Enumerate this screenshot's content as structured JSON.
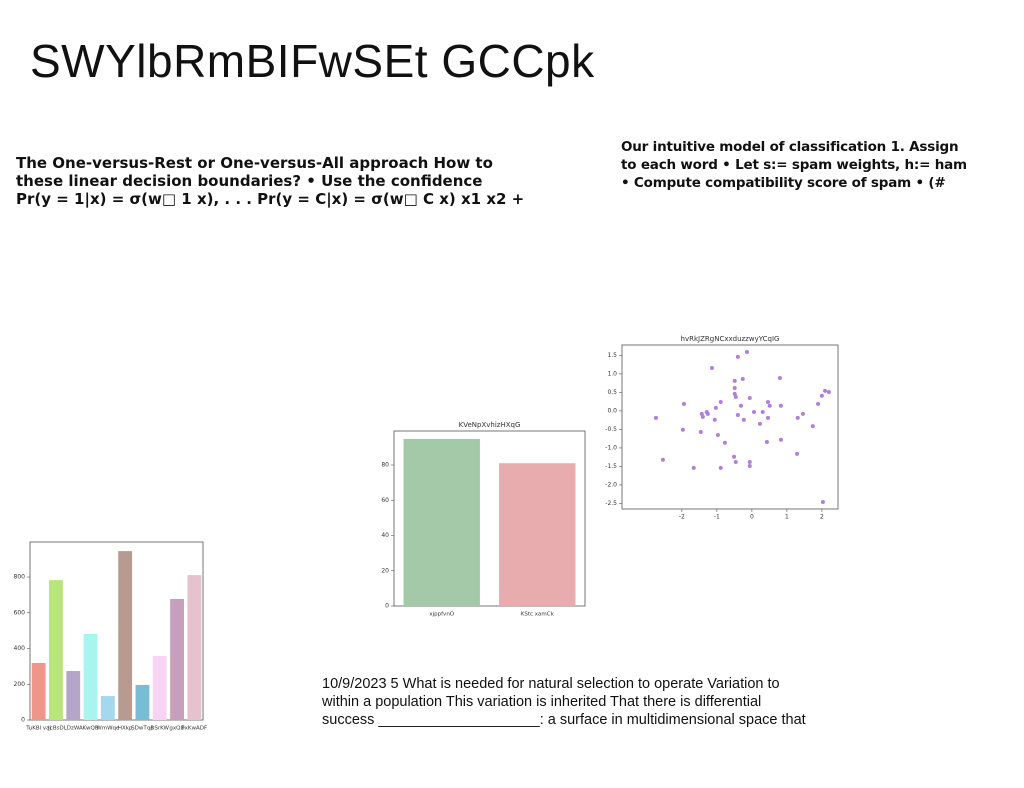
{
  "title": "SWYlbRmBIFwSEt GCCpk",
  "left_text": [
    "The One-versus-Rest or One-versus-All approach How to",
    "these linear decision boundaries? • Use the confidence",
    "Pr(y = 1|x) = σ(w□ 1 x), . . . Pr(y = C|x) = σ(w□ C x) x1 x2 +"
  ],
  "right_text": [
    "Our intuitive model of classification 1. Assign",
    "to each word • Let s:= spam weights, h:= ham",
    "• Compute compatibility score of spam • (#"
  ],
  "bottom_text": [
    "10/9/2023 5 What is needed for natural selection to operate Variation to",
    "within a population This variation is inherited That there is differential",
    "success ____________________: a surface in multidimensional space that"
  ],
  "chart_data": [
    {
      "type": "bar",
      "categories": [
        "TuKBl vaj",
        "JcBsD",
        "LDzWA",
        "KwQB",
        "WmWqe",
        "HXkp",
        "SDwTqp",
        "RSrKW",
        "gxQD",
        "FxKwADF"
      ],
      "values": [
        319,
        783,
        274,
        481,
        134,
        945,
        196,
        358,
        677,
        811
      ],
      "colors": [
        "#f0958a",
        "#b9e67a",
        "#b3a6c9",
        "#a8f5ef",
        "#a4d8ee",
        "#b79b90",
        "#79bcd6",
        "#f9d3f4",
        "#c59fbb",
        "#e6c2cf"
      ],
      "ylim": [
        0,
        996
      ],
      "yticks": [
        0,
        200,
        400,
        600,
        800
      ]
    },
    {
      "type": "bar",
      "title": "KVeNpXvhizHXqG",
      "categories": [
        "xjppfvnO",
        "KStc xamCk"
      ],
      "values": [
        94.8,
        81
      ],
      "colors": [
        "#a3c9a8",
        "#e8abae"
      ],
      "ylim": [
        0,
        99.3
      ],
      "yticks": [
        0,
        20,
        40,
        60,
        80
      ]
    },
    {
      "type": "scatter",
      "title": "hvRkJZRgNCxxduzzwyYCqIG",
      "color": "#b07fdc",
      "x": [
        -2.74,
        -2.54,
        -1.94,
        -1.97,
        -1.66,
        -1.46,
        -1.43,
        -1.4,
        -1.29,
        -1.26,
        -1.14,
        -1.06,
        -1.03,
        -0.97,
        -0.89,
        -0.89,
        -0.77,
        -0.51,
        -0.49,
        -0.49,
        -0.49,
        -0.46,
        -0.46,
        -0.4,
        -0.4,
        -0.31,
        -0.26,
        -0.23,
        -0.14,
        -0.06,
        -0.06,
        -0.06,
        0.06,
        0.23,
        0.31,
        0.43,
        0.46,
        0.46,
        0.51,
        0.8,
        0.83,
        0.83,
        1.29,
        1.31,
        1.46,
        1.74,
        1.89,
        2.0,
        2.03,
        2.09,
        2.2
      ],
      "values": [
        -0.19,
        -1.32,
        0.19,
        -0.51,
        -1.54,
        -0.57,
        -0.08,
        -0.16,
        -0.03,
        -0.08,
        1.16,
        -0.24,
        0.08,
        -0.65,
        -1.54,
        0.24,
        -0.86,
        -1.24,
        0.62,
        0.81,
        0.46,
        0.38,
        -1.38,
        1.46,
        -0.11,
        0.14,
        0.86,
        -0.24,
        1.59,
        0.35,
        -1.49,
        -1.38,
        -0.03,
        -0.35,
        -0.03,
        -0.84,
        0.24,
        -0.19,
        0.14,
        0.89,
        0.14,
        -0.78,
        -1.16,
        -0.19,
        -0.08,
        -0.41,
        0.19,
        0.41,
        -2.46,
        0.54,
        0.51
      ],
      "xlim": [
        -3.71,
        2.46
      ],
      "xticks": [
        -2,
        -1,
        0,
        1,
        2
      ],
      "ylim": [
        -2.65,
        1.78
      ],
      "yticks": [
        1.5,
        {
          "value": 1,
          "label": "1.0"
        },
        0.5,
        {
          "value": 0,
          "label": "0.0"
        },
        -0.5,
        {
          "value": -1,
          "label": "-1.0"
        },
        -1.5,
        {
          "value": -2,
          "label": "-2.0"
        },
        -2.5
      ]
    }
  ]
}
